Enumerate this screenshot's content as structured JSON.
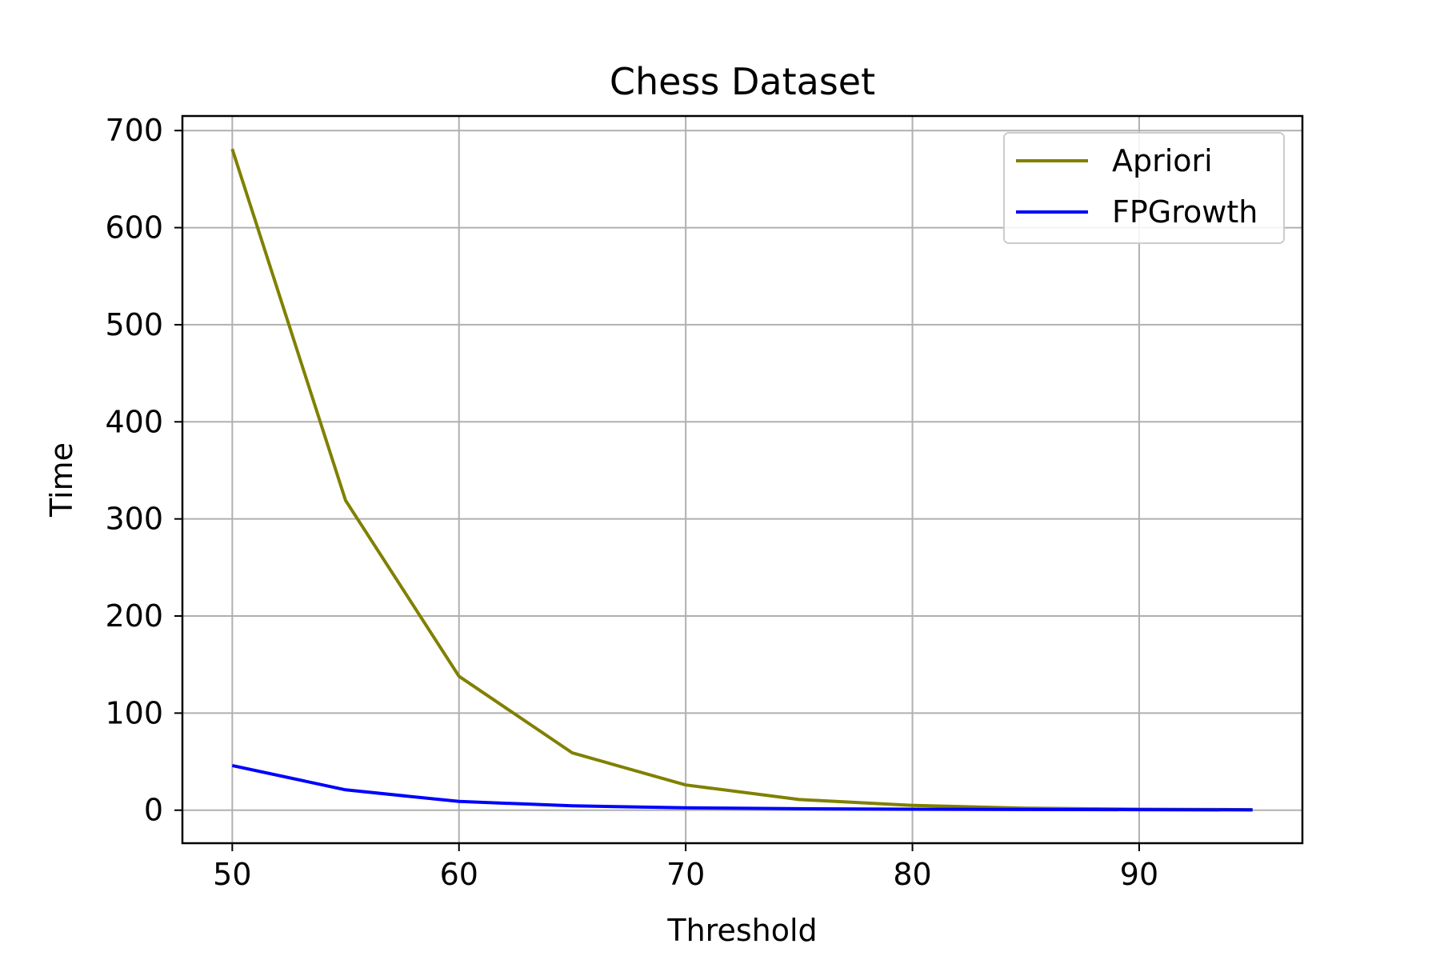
{
  "chart_data": {
    "type": "line",
    "title": "Chess Dataset",
    "xlabel": "Threshold",
    "ylabel": "Time",
    "xlim": [
      47.8,
      97.2
    ],
    "ylim": [
      -34,
      715
    ],
    "xticks": [
      50,
      60,
      70,
      80,
      90
    ],
    "yticks": [
      0,
      100,
      200,
      300,
      400,
      500,
      600,
      700
    ],
    "grid": true,
    "legend_position": "top-right",
    "x": [
      50,
      55,
      60,
      65,
      70,
      75,
      80,
      85,
      90,
      95
    ],
    "series": [
      {
        "name": "Apriori",
        "color": "#808000",
        "values": [
          681,
          319,
          138,
          59,
          26,
          11,
          5,
          2,
          1,
          0.5
        ]
      },
      {
        "name": "FPGrowth",
        "color": "#0000ff",
        "values": [
          46,
          21,
          9,
          4.5,
          2.5,
          1.5,
          1,
          0.7,
          0.5,
          0.3
        ]
      }
    ]
  }
}
